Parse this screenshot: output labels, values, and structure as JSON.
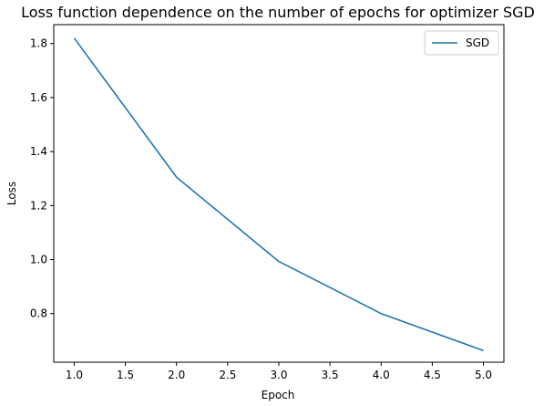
{
  "chart_data": {
    "type": "line",
    "title": "Loss function dependence on the number of epochs for optimizer SGD",
    "xlabel": "Epoch",
    "ylabel": "Loss",
    "xlim": [
      0.8,
      5.2
    ],
    "ylim": [
      0.62,
      1.87
    ],
    "x_ticks": [
      1.0,
      1.5,
      2.0,
      2.5,
      3.0,
      3.5,
      4.0,
      4.5,
      5.0
    ],
    "x_tick_labels": [
      "1.0",
      "1.5",
      "2.0",
      "2.5",
      "3.0",
      "3.5",
      "4.0",
      "4.5",
      "5.0"
    ],
    "y_ticks": [
      0.8,
      1.0,
      1.2,
      1.4,
      1.6,
      1.8
    ],
    "y_tick_labels": [
      "0.8",
      "1.0",
      "1.2",
      "1.4",
      "1.6",
      "1.8"
    ],
    "grid": false,
    "legend_position": "top-right",
    "series": [
      {
        "name": "SGD",
        "color": "#1f77b4",
        "x": [
          1,
          2,
          3,
          4,
          5
        ],
        "y": [
          1.82,
          1.305,
          0.993,
          0.8,
          0.663
        ]
      }
    ]
  }
}
